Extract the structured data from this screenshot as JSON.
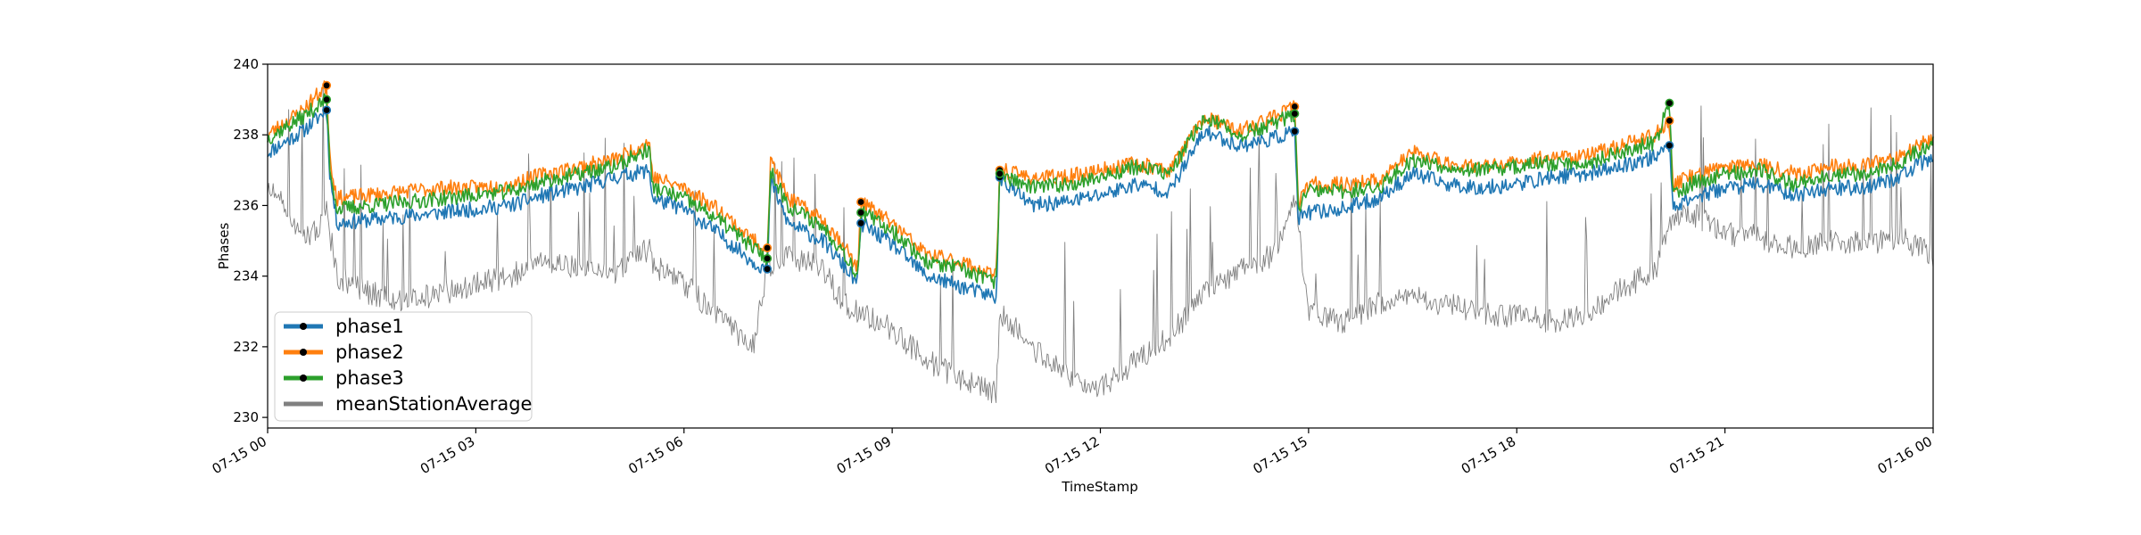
{
  "chart_data": {
    "type": "line",
    "title": "",
    "xlabel": "TimeStamp",
    "ylabel": "Phases",
    "ylim": [
      229.7,
      240
    ],
    "xlim": [
      0,
      24
    ],
    "yticks": [
      230,
      232,
      234,
      236,
      238,
      240
    ],
    "xticks": [
      {
        "x": 0,
        "label": "07-15 00"
      },
      {
        "x": 3,
        "label": "07-15 03"
      },
      {
        "x": 6,
        "label": "07-15 06"
      },
      {
        "x": 9,
        "label": "07-15 09"
      },
      {
        "x": 12,
        "label": "07-15 12"
      },
      {
        "x": 15,
        "label": "07-15 15"
      },
      {
        "x": 18,
        "label": "07-15 18"
      },
      {
        "x": 21,
        "label": "07-15 21"
      },
      {
        "x": 24,
        "label": "07-16 00"
      }
    ],
    "legend_position": "lower-left",
    "grid": false,
    "series": [
      {
        "name": "phase1",
        "color": "#1f77b4",
        "marker": "black-dot",
        "x": [
          0,
          0.5,
          0.85,
          0.9,
          1.0,
          1.5,
          2.0,
          2.5,
          3.0,
          3.5,
          4.0,
          4.5,
          5.0,
          5.5,
          5.55,
          6.0,
          6.5,
          7.0,
          7.2,
          7.25,
          7.5,
          8.0,
          8.3,
          8.5,
          8.55,
          9.0,
          9.5,
          10.0,
          10.5,
          10.55,
          11.0,
          11.5,
          12.0,
          12.5,
          13.0,
          13.5,
          14.0,
          14.5,
          14.8,
          14.85,
          15.0,
          15.5,
          16.0,
          16.5,
          17.0,
          17.5,
          18.0,
          18.5,
          19.0,
          19.5,
          20.0,
          20.2,
          20.25,
          20.5,
          21.0,
          21.5,
          22.0,
          22.5,
          23.0,
          23.5,
          24.0
        ],
        "y": [
          237.5,
          238.1,
          238.7,
          236.8,
          235.5,
          235.6,
          235.7,
          235.8,
          235.9,
          236.0,
          236.3,
          236.5,
          236.8,
          237.0,
          236.2,
          235.9,
          235.2,
          234.4,
          234.2,
          236.7,
          235.5,
          235.0,
          234.3,
          233.8,
          235.5,
          234.9,
          234.0,
          233.7,
          233.4,
          236.8,
          236.0,
          236.1,
          236.3,
          236.6,
          236.4,
          238.1,
          237.7,
          237.9,
          238.1,
          235.6,
          235.8,
          235.9,
          236.2,
          236.9,
          236.6,
          236.5,
          236.6,
          236.8,
          236.9,
          237.1,
          237.4,
          237.7,
          236.0,
          236.2,
          236.5,
          236.6,
          236.3,
          236.5,
          236.5,
          236.8,
          237.4
        ]
      },
      {
        "name": "phase2",
        "color": "#ff7f0e",
        "marker": "black-dot",
        "x": [
          0,
          0.5,
          0.85,
          0.9,
          1.0,
          1.5,
          2.0,
          2.5,
          3.0,
          3.5,
          4.0,
          4.5,
          5.0,
          5.5,
          5.55,
          6.0,
          6.5,
          7.0,
          7.2,
          7.25,
          7.5,
          8.0,
          8.3,
          8.5,
          8.55,
          9.0,
          9.5,
          10.0,
          10.5,
          10.55,
          11.0,
          11.5,
          12.0,
          12.5,
          13.0,
          13.5,
          14.0,
          14.5,
          14.8,
          14.85,
          15.0,
          15.5,
          16.0,
          16.5,
          17.0,
          17.5,
          18.0,
          18.5,
          19.0,
          19.5,
          20.0,
          20.2,
          20.25,
          20.5,
          21.0,
          21.5,
          22.0,
          22.5,
          23.0,
          23.5,
          24.0
        ],
        "y": [
          238.0,
          238.7,
          239.4,
          237.3,
          236.2,
          236.3,
          236.4,
          236.5,
          236.5,
          236.6,
          236.9,
          237.1,
          237.3,
          237.8,
          236.8,
          236.5,
          235.9,
          235.0,
          234.8,
          237.3,
          236.2,
          235.6,
          234.9,
          234.2,
          236.1,
          235.5,
          234.6,
          234.4,
          234.0,
          237.0,
          236.8,
          236.8,
          237.0,
          237.2,
          237.0,
          238.5,
          238.1,
          238.5,
          238.8,
          236.1,
          236.6,
          236.6,
          236.7,
          237.5,
          237.2,
          237.1,
          237.2,
          237.4,
          237.4,
          237.7,
          238.0,
          238.4,
          236.6,
          236.8,
          237.1,
          237.2,
          236.9,
          237.1,
          237.1,
          237.4,
          237.9
        ]
      },
      {
        "name": "phase3",
        "color": "#2ca02c",
        "marker": "black-dot",
        "x": [
          0,
          0.5,
          0.85,
          0.9,
          1.0,
          1.5,
          2.0,
          2.5,
          3.0,
          3.5,
          4.0,
          4.5,
          5.0,
          5.5,
          5.55,
          6.0,
          6.5,
          7.0,
          7.2,
          7.25,
          7.5,
          8.0,
          8.3,
          8.5,
          8.55,
          9.0,
          9.5,
          10.0,
          10.5,
          10.55,
          11.0,
          11.5,
          12.0,
          12.5,
          13.0,
          13.5,
          14.0,
          14.5,
          14.8,
          14.85,
          15.0,
          15.5,
          16.0,
          16.5,
          17.0,
          17.5,
          18.0,
          18.5,
          19.0,
          19.5,
          20.0,
          20.2,
          20.25,
          20.5,
          21.0,
          21.5,
          22.0,
          22.5,
          23.0,
          23.5,
          24.0
        ],
        "y": [
          237.9,
          238.5,
          239.0,
          237.0,
          235.9,
          236.0,
          236.1,
          236.2,
          236.3,
          236.4,
          236.7,
          236.9,
          237.1,
          237.6,
          236.5,
          236.2,
          235.6,
          234.8,
          234.5,
          237.0,
          236.0,
          235.4,
          234.7,
          234.0,
          235.8,
          235.3,
          234.4,
          234.2,
          233.8,
          236.9,
          236.5,
          236.6,
          236.8,
          237.1,
          236.9,
          238.5,
          238.0,
          238.3,
          238.6,
          235.9,
          236.4,
          236.4,
          236.5,
          237.3,
          237.1,
          237.0,
          237.1,
          237.2,
          237.2,
          237.5,
          237.8,
          238.9,
          236.3,
          236.6,
          236.9,
          237.0,
          236.6,
          236.9,
          236.9,
          237.2,
          237.8
        ]
      },
      {
        "name": "meanStationAverage",
        "color": "#808080",
        "marker": "none",
        "x": [
          0,
          0.3,
          0.6,
          0.85,
          1.0,
          1.5,
          2.0,
          2.5,
          3.0,
          3.5,
          4.0,
          4.5,
          5.0,
          5.5,
          5.55,
          6.0,
          6.5,
          7.0,
          7.2,
          7.5,
          8.0,
          8.3,
          8.55,
          9.0,
          9.5,
          10.0,
          10.5,
          10.55,
          11.0,
          11.5,
          12.0,
          12.5,
          13.0,
          13.5,
          14.0,
          14.5,
          14.8,
          15.0,
          15.5,
          16.0,
          16.5,
          17.0,
          17.5,
          18.0,
          18.5,
          19.0,
          19.5,
          20.0,
          20.2,
          20.5,
          21.0,
          21.5,
          22.0,
          22.5,
          23.0,
          23.5,
          24.0
        ],
        "y": [
          236.5,
          235.8,
          235.0,
          235.8,
          234.0,
          233.5,
          233.3,
          233.5,
          233.8,
          234.0,
          234.4,
          234.2,
          234.0,
          234.8,
          234.3,
          233.8,
          232.8,
          232.0,
          234.3,
          234.6,
          234.2,
          233.2,
          233.0,
          232.5,
          231.6,
          231.1,
          230.7,
          233.0,
          232.0,
          231.2,
          230.8,
          231.6,
          232.3,
          233.5,
          234.2,
          234.6,
          236.2,
          233.0,
          232.7,
          233.2,
          233.4,
          233.2,
          232.9,
          232.9,
          232.7,
          233.0,
          233.6,
          234.2,
          235.6,
          235.8,
          235.2,
          235.1,
          234.8,
          235.0,
          234.9,
          235.1,
          234.6
        ]
      }
    ]
  }
}
